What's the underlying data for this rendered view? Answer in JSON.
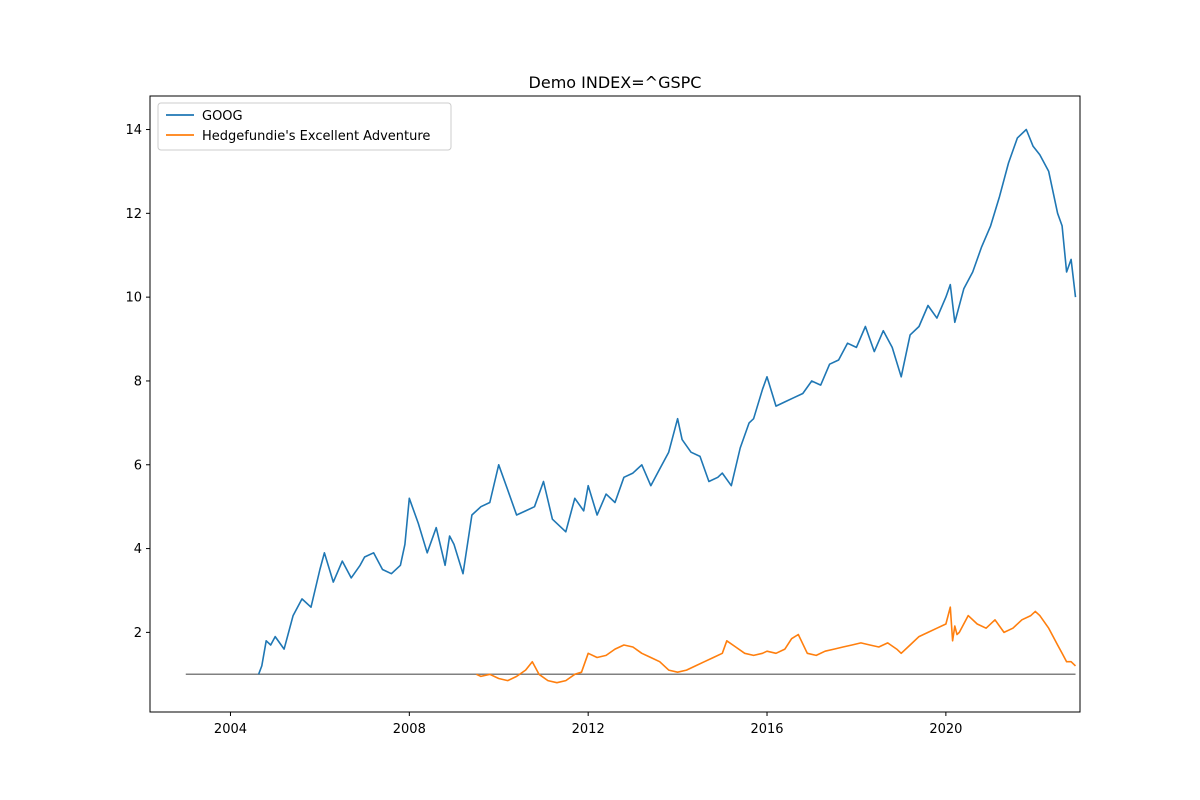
{
  "chart_data": {
    "type": "line",
    "title": "Demo INDEX=^GSPC",
    "xlabel": "",
    "ylabel": "",
    "xlim": [
      2002.2,
      2023.0
    ],
    "ylim": [
      0.1,
      14.8
    ],
    "x_ticks": [
      2004,
      2008,
      2012,
      2016,
      2020
    ],
    "y_ticks": [
      2,
      4,
      6,
      8,
      10,
      12,
      14
    ],
    "grid": false,
    "legend_position": "upper-left",
    "reference_line": {
      "y": 1.0,
      "x_range": [
        2003.0,
        2022.9
      ],
      "color": "#808080"
    },
    "series": [
      {
        "name": "GOOG",
        "color": "#1f77b4",
        "x": [
          2004.63,
          2004.7,
          2004.8,
          2004.9,
          2005.0,
          2005.2,
          2005.4,
          2005.6,
          2005.8,
          2006.0,
          2006.1,
          2006.3,
          2006.5,
          2006.7,
          2006.9,
          2007.0,
          2007.2,
          2007.4,
          2007.6,
          2007.8,
          2007.9,
          2008.0,
          2008.2,
          2008.4,
          2008.6,
          2008.8,
          2008.9,
          2009.0,
          2009.2,
          2009.4,
          2009.6,
          2009.8,
          2010.0,
          2010.2,
          2010.4,
          2010.6,
          2010.8,
          2011.0,
          2011.2,
          2011.5,
          2011.7,
          2011.9,
          2012.0,
          2012.2,
          2012.4,
          2012.6,
          2012.8,
          2013.0,
          2013.2,
          2013.4,
          2013.6,
          2013.8,
          2014.0,
          2014.1,
          2014.3,
          2014.5,
          2014.7,
          2014.9,
          2015.0,
          2015.2,
          2015.4,
          2015.6,
          2015.7,
          2015.9,
          2016.0,
          2016.2,
          2016.4,
          2016.6,
          2016.8,
          2017.0,
          2017.2,
          2017.4,
          2017.6,
          2017.8,
          2018.0,
          2018.2,
          2018.4,
          2018.6,
          2018.8,
          2019.0,
          2019.2,
          2019.4,
          2019.6,
          2019.8,
          2020.0,
          2020.1,
          2020.2,
          2020.4,
          2020.6,
          2020.8,
          2021.0,
          2021.2,
          2021.4,
          2021.6,
          2021.8,
          2021.95,
          2022.1,
          2022.3,
          2022.5,
          2022.6,
          2022.7,
          2022.8,
          2022.9
        ],
        "values": [
          1.0,
          1.2,
          1.8,
          1.7,
          1.9,
          1.6,
          2.4,
          2.8,
          2.6,
          3.5,
          3.9,
          3.2,
          3.7,
          3.3,
          3.6,
          3.8,
          3.9,
          3.5,
          3.4,
          3.6,
          4.1,
          5.2,
          4.6,
          3.9,
          4.5,
          3.6,
          4.3,
          4.1,
          3.4,
          4.8,
          5.0,
          5.1,
          6.0,
          5.4,
          4.8,
          4.9,
          5.0,
          5.6,
          4.7,
          4.4,
          5.2,
          4.9,
          5.5,
          4.8,
          5.3,
          5.1,
          5.7,
          5.8,
          6.0,
          5.5,
          5.9,
          6.3,
          7.1,
          6.6,
          6.3,
          6.2,
          5.6,
          5.7,
          5.8,
          5.5,
          6.4,
          7.0,
          7.1,
          7.8,
          8.1,
          7.4,
          7.5,
          7.6,
          7.7,
          8.0,
          7.9,
          8.4,
          8.5,
          8.9,
          8.8,
          9.3,
          8.7,
          9.2,
          8.8,
          8.1,
          9.1,
          9.3,
          9.8,
          9.5,
          10.0,
          10.3,
          9.4,
          10.2,
          10.6,
          11.2,
          11.7,
          12.4,
          13.2,
          13.8,
          14.0,
          13.6,
          13.4,
          13.0,
          12.0,
          11.7,
          10.6,
          10.9,
          10.0
        ]
      },
      {
        "name": "Hedgefundie's Excellent Adventure",
        "color": "#ff7f0e",
        "x": [
          2009.5,
          2009.6,
          2009.8,
          2010.0,
          2010.2,
          2010.4,
          2010.6,
          2010.75,
          2010.9,
          2011.1,
          2011.3,
          2011.5,
          2011.7,
          2011.85,
          2012.0,
          2012.2,
          2012.4,
          2012.6,
          2012.8,
          2013.0,
          2013.2,
          2013.4,
          2013.6,
          2013.8,
          2014.0,
          2014.2,
          2014.4,
          2014.6,
          2014.8,
          2015.0,
          2015.1,
          2015.3,
          2015.5,
          2015.7,
          2015.9,
          2016.0,
          2016.2,
          2016.4,
          2016.55,
          2016.7,
          2016.9,
          2017.1,
          2017.3,
          2017.5,
          2017.7,
          2017.9,
          2018.1,
          2018.3,
          2018.5,
          2018.7,
          2018.9,
          2019.0,
          2019.2,
          2019.4,
          2019.6,
          2019.8,
          2020.0,
          2020.1,
          2020.15,
          2020.2,
          2020.25,
          2020.3,
          2020.5,
          2020.7,
          2020.9,
          2021.1,
          2021.3,
          2021.5,
          2021.7,
          2021.9,
          2022.0,
          2022.1,
          2022.3,
          2022.5,
          2022.6,
          2022.7,
          2022.8,
          2022.9
        ],
        "values": [
          1.0,
          0.95,
          1.0,
          0.9,
          0.85,
          0.95,
          1.1,
          1.3,
          1.0,
          0.85,
          0.8,
          0.85,
          1.0,
          1.05,
          1.5,
          1.4,
          1.45,
          1.6,
          1.7,
          1.65,
          1.5,
          1.4,
          1.3,
          1.1,
          1.05,
          1.1,
          1.2,
          1.3,
          1.4,
          1.5,
          1.8,
          1.65,
          1.5,
          1.45,
          1.5,
          1.55,
          1.5,
          1.6,
          1.85,
          1.95,
          1.5,
          1.45,
          1.55,
          1.6,
          1.65,
          1.7,
          1.75,
          1.7,
          1.65,
          1.75,
          1.6,
          1.5,
          1.7,
          1.9,
          2.0,
          2.1,
          2.2,
          2.6,
          1.8,
          2.15,
          1.95,
          2.0,
          2.4,
          2.2,
          2.1,
          2.3,
          2.0,
          2.1,
          2.3,
          2.4,
          2.5,
          2.4,
          2.1,
          1.7,
          1.5,
          1.3,
          1.3,
          1.2
        ]
      }
    ]
  }
}
